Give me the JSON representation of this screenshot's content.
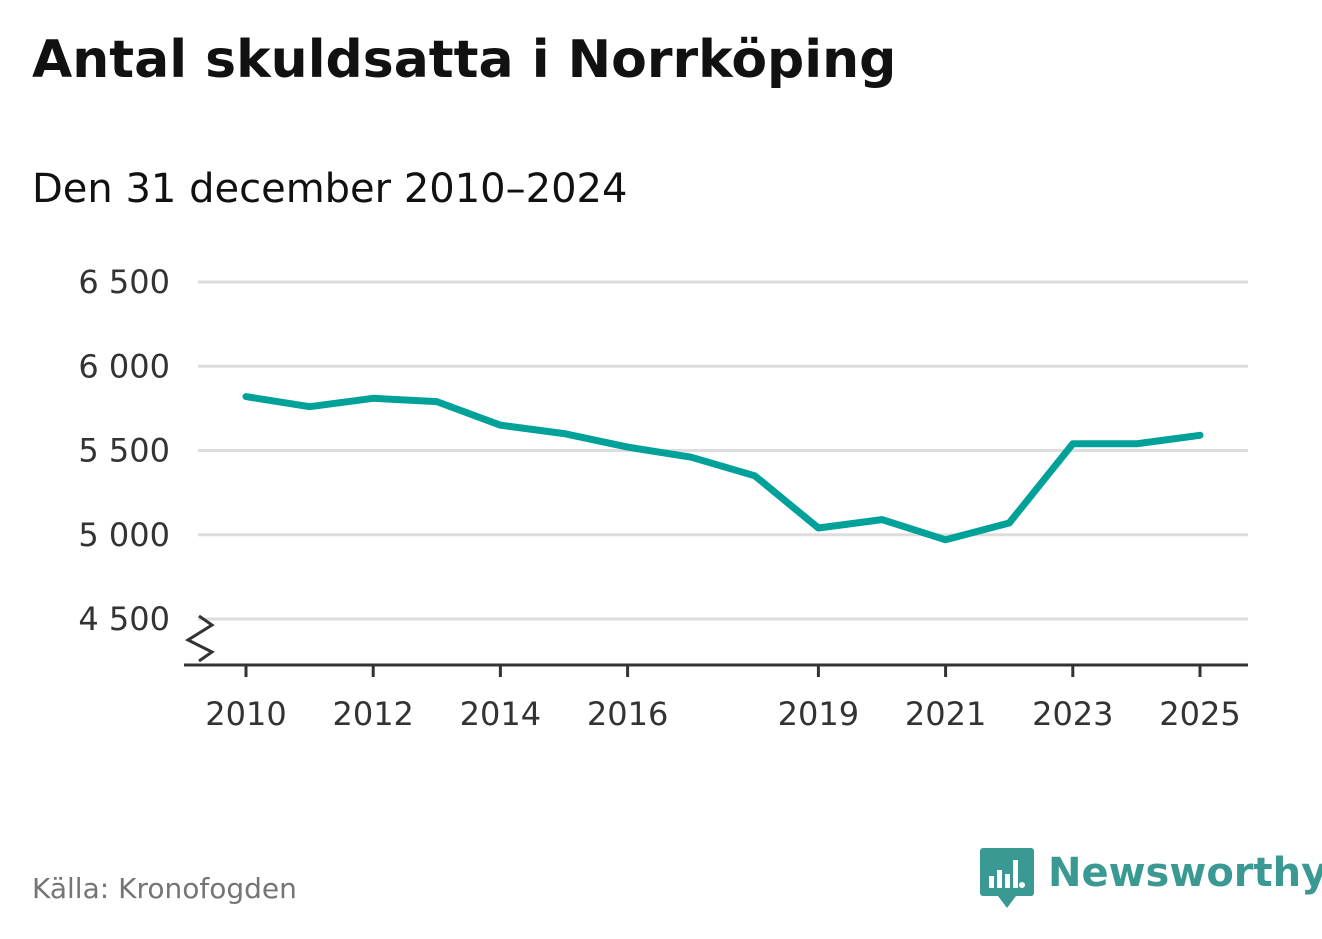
{
  "title": "Antal skuldsatta i Norrköping",
  "subtitle": "Den 31 december 2010–2024",
  "source": "Källa: Kronofogden",
  "brand": {
    "name": "Newsworthy",
    "icon": "newsworthy-logo-icon",
    "color": "#3a9a93"
  },
  "colors": {
    "line": "#00a199",
    "grid": "#dddddd",
    "axis": "#333333"
  },
  "chart_data": {
    "type": "line",
    "title": "Antal skuldsatta i Norrköping",
    "subtitle": "Den 31 december 2010–2024",
    "xlabel": "",
    "ylabel": "",
    "x": [
      2010,
      2011,
      2012,
      2013,
      2014,
      2015,
      2016,
      2017,
      2018,
      2019,
      2020,
      2021,
      2022,
      2023,
      2024,
      2025
    ],
    "series": [
      {
        "name": "",
        "values": [
          5820,
          5760,
          5810,
          5790,
          5650,
          5600,
          5520,
          5460,
          5350,
          5040,
          5090,
          4970,
          5070,
          5540,
          5540,
          5590
        ]
      }
    ],
    "xticks": [
      2010,
      2012,
      2014,
      2016,
      2019,
      2021,
      2023,
      2025
    ],
    "xtick_labels": [
      "2010",
      "2012",
      "2014",
      "2016",
      "2019",
      "2021",
      "2023",
      "2025"
    ],
    "yticks": [
      4500,
      5000,
      5500,
      6000,
      6500
    ],
    "ytick_labels": [
      "4 500",
      "5 000",
      "5 500",
      "6 000",
      "6 500"
    ],
    "xlim": [
      2009.6,
      2025.75
    ],
    "ylim": [
      4500,
      6500
    ],
    "axis_break": true,
    "grid": true,
    "legend": "none"
  }
}
